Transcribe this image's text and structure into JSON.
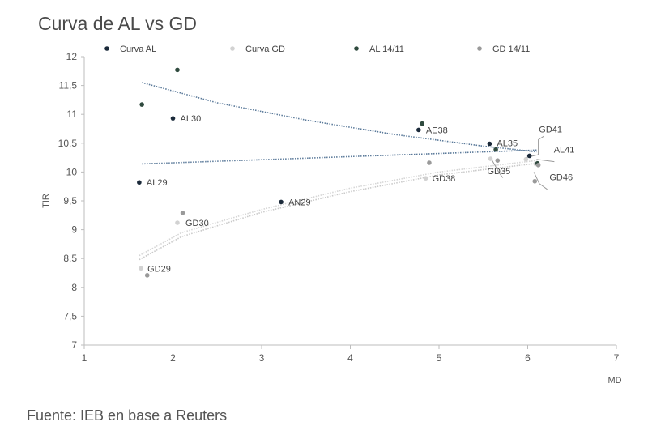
{
  "title": "Curva de AL vs GD",
  "source": "Fuente: IEB en base a Reuters",
  "chart_data": {
    "type": "scatter",
    "title": "Curva de AL vs GD",
    "xlabel": "MD",
    "ylabel": "TIR",
    "xlim": [
      1,
      7
    ],
    "ylim": [
      7,
      12
    ],
    "x_ticks": [
      "1",
      "2",
      "3",
      "4",
      "5",
      "6",
      "7"
    ],
    "y_ticks": [
      "7",
      "7,5",
      "8",
      "8,5",
      "9",
      "9,5",
      "10",
      "10,5",
      "11",
      "11,5",
      "12"
    ],
    "grid": false,
    "legend_position": "top",
    "legend": [
      "Curva AL",
      "Curva GD",
      "AL 14/11",
      "GD 14/11"
    ],
    "series": [
      {
        "name": "Curva AL",
        "color": "#1b2a3a",
        "points": [
          {
            "label": "AL29",
            "x": 1.62,
            "y": 9.82
          },
          {
            "label": "AL30",
            "x": 2.0,
            "y": 10.93
          },
          {
            "label": "AN29",
            "x": 3.22,
            "y": 9.48
          },
          {
            "label": "AE38",
            "x": 4.77,
            "y": 10.73
          },
          {
            "label": "AL35",
            "x": 5.57,
            "y": 10.49
          },
          {
            "label": "AL41",
            "x": 6.02,
            "y": 10.28
          }
        ]
      },
      {
        "name": "Curva GD",
        "color": "#d2d2d2",
        "points": [
          {
            "label": "GD29",
            "x": 1.64,
            "y": 8.33
          },
          {
            "label": "GD30",
            "x": 2.05,
            "y": 9.12
          },
          {
            "label": "GD38",
            "x": 4.85,
            "y": 9.89
          },
          {
            "label": "GD35",
            "x": 5.58,
            "y": 10.23
          },
          {
            "label": "GD41",
            "x": 5.98,
            "y": 10.22
          },
          {
            "label": "GD46",
            "x": 6.09,
            "y": 10.14
          }
        ]
      },
      {
        "name": "AL 14/11",
        "color": "#2f4a3e",
        "points": [
          {
            "x": 1.65,
            "y": 11.17
          },
          {
            "x": 2.05,
            "y": 11.77
          },
          {
            "x": 4.81,
            "y": 10.84
          },
          {
            "x": 5.64,
            "y": 10.39
          },
          {
            "x": 6.11,
            "y": 10.15
          }
        ]
      },
      {
        "name": "GD 14/11",
        "color": "#9a9a9a",
        "points": [
          {
            "x": 1.71,
            "y": 8.21
          },
          {
            "x": 2.11,
            "y": 9.29
          },
          {
            "x": 4.89,
            "y": 10.16
          },
          {
            "x": 5.66,
            "y": 10.2
          },
          {
            "x": 6.08,
            "y": 9.84
          },
          {
            "x": 6.12,
            "y": 10.12
          }
        ]
      }
    ],
    "trendlines": [
      {
        "name": "Curva AL trend",
        "color": "#5b7a9a",
        "points": [
          [
            1.65,
            10.14
          ],
          [
            6.1,
            10.38
          ]
        ]
      },
      {
        "name": "AL 14/11 trend",
        "color": "#5b7a9a",
        "points": [
          [
            1.65,
            11.55
          ],
          [
            2.5,
            11.2
          ],
          [
            3.5,
            10.9
          ],
          [
            4.5,
            10.65
          ],
          [
            5.5,
            10.45
          ],
          [
            6.1,
            10.35
          ]
        ]
      },
      {
        "name": "Curva GD trend",
        "color": "#d6d6d6",
        "points": [
          [
            1.62,
            8.55
          ],
          [
            2.1,
            8.95
          ],
          [
            3.0,
            9.35
          ],
          [
            4.0,
            9.72
          ],
          [
            5.0,
            10.0
          ],
          [
            6.1,
            10.2
          ]
        ]
      },
      {
        "name": "GD 14/11 trend",
        "color": "#c9c9c9",
        "points": [
          [
            1.62,
            8.48
          ],
          [
            2.1,
            8.88
          ],
          [
            3.0,
            9.3
          ],
          [
            4.0,
            9.66
          ],
          [
            5.0,
            9.95
          ],
          [
            6.1,
            10.15
          ]
        ]
      }
    ]
  }
}
